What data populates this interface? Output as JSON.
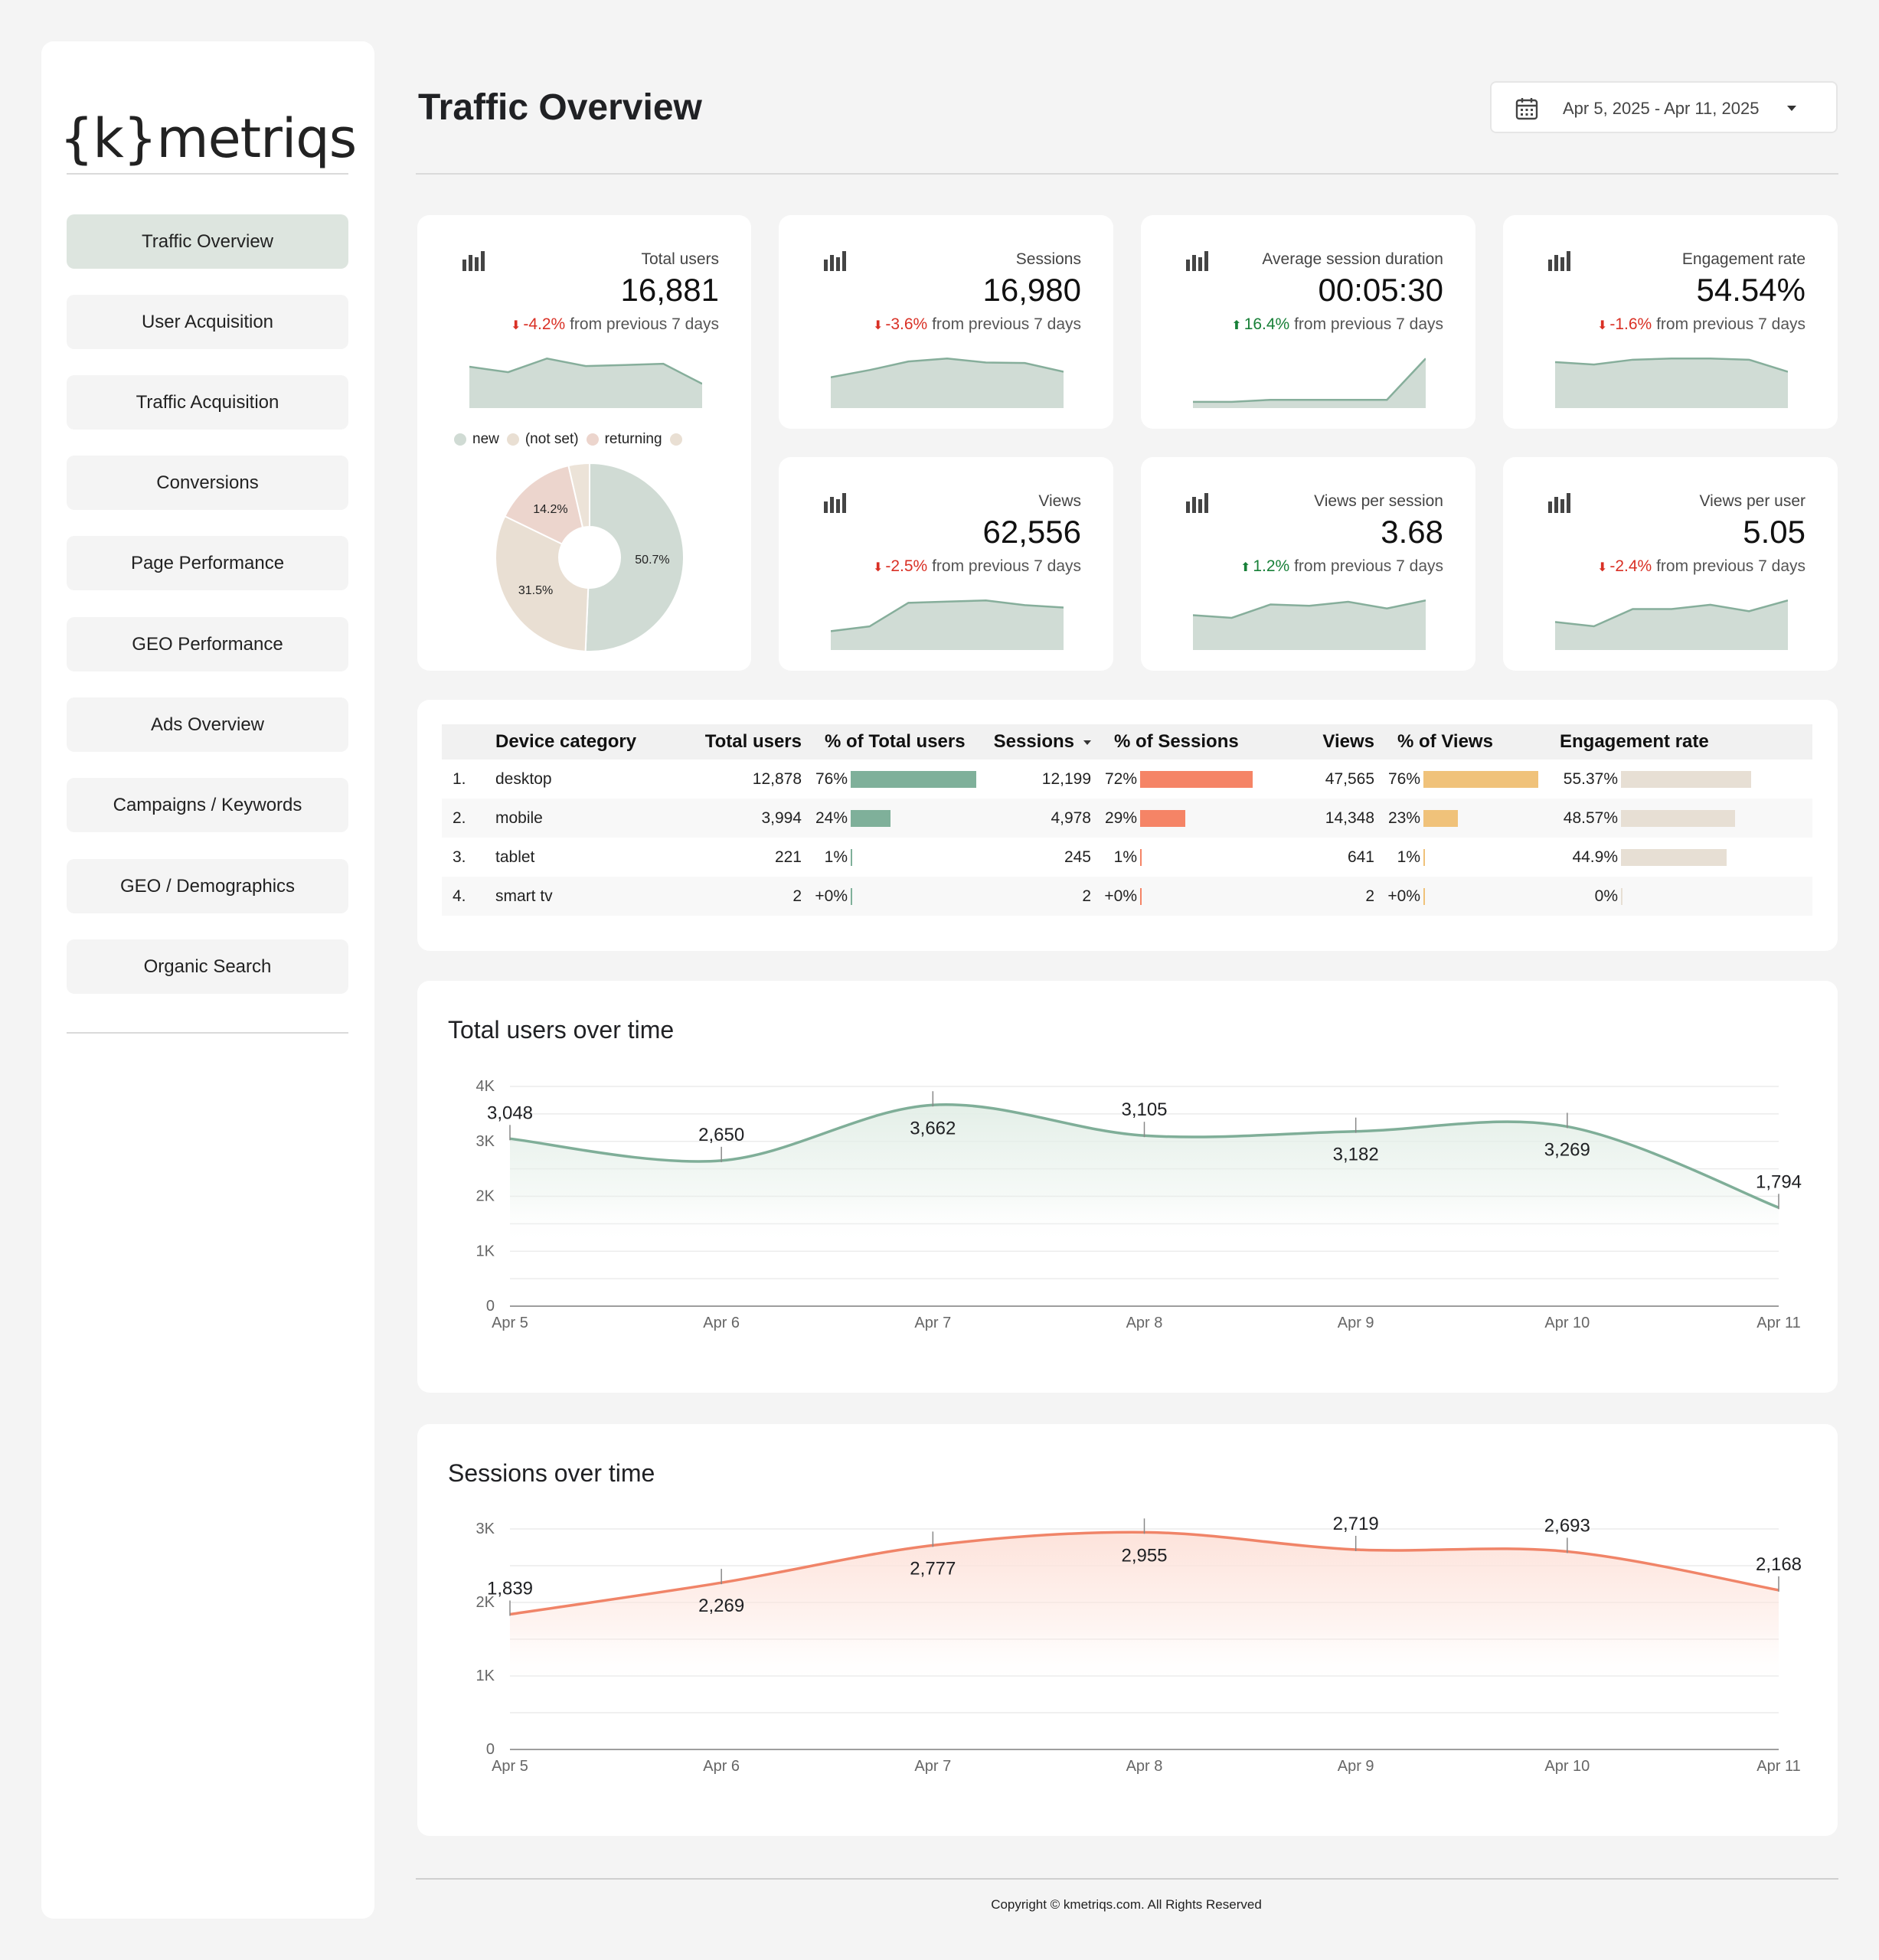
{
  "brand": {
    "logo_text": "{k}metriqs"
  },
  "sidebar": {
    "items": [
      {
        "label": "Traffic Overview",
        "active": true
      },
      {
        "label": "User Acquisition"
      },
      {
        "label": "Traffic Acquisition"
      },
      {
        "label": "Conversions"
      },
      {
        "label": "Page Performance"
      },
      {
        "label": "GEO Performance"
      },
      {
        "label": "Ads Overview"
      },
      {
        "label": "Campaigns / Keywords"
      },
      {
        "label": "GEO / Demographics"
      },
      {
        "label": "Organic Search"
      }
    ]
  },
  "header": {
    "title": "Traffic Overview",
    "date_range": "Apr 5, 2025 - Apr 11, 2025",
    "calendar_icon": "calendar-icon"
  },
  "kpis": [
    {
      "label": "Total users",
      "value": "16,881",
      "delta": "-4.2%",
      "direction": "down",
      "suffix": "from previous 7 days",
      "spark": [
        3.05,
        2.65,
        3.66,
        3.1,
        3.18,
        3.27,
        1.79
      ]
    },
    {
      "label": "Sessions",
      "value": "16,980",
      "delta": "-3.6%",
      "direction": "down",
      "suffix": "from previous 7 days",
      "spark": [
        1.84,
        2.27,
        2.78,
        2.96,
        2.72,
        2.69,
        2.17
      ]
    },
    {
      "label": "Average session duration",
      "value": "00:05:30",
      "delta": "16.4%",
      "direction": "up",
      "suffix": "from previous 7 days",
      "spark": [
        0.3,
        0.3,
        0.4,
        0.4,
        0.4,
        0.4,
        2.4
      ]
    },
    {
      "label": "Engagement rate",
      "value": "54.54%",
      "delta": "-1.6%",
      "direction": "down",
      "suffix": "from previous 7 days",
      "spark": [
        1.9,
        1.8,
        2.0,
        2.05,
        2.05,
        2.0,
        1.5
      ]
    },
    {
      "label": "Views",
      "value": "62,556",
      "delta": "-2.5%",
      "direction": "down",
      "suffix": "from previous 7 days",
      "spark": [
        0.8,
        1.0,
        2.0,
        2.05,
        2.1,
        1.9,
        1.8
      ]
    },
    {
      "label": "Views per session",
      "value": "3.68",
      "delta": "1.2%",
      "direction": "up",
      "suffix": "from previous 7 days",
      "spark": [
        2.6,
        2.4,
        3.4,
        3.3,
        3.6,
        3.1,
        3.7
      ]
    },
    {
      "label": "Views per user",
      "value": "5.05",
      "delta": "-2.4%",
      "direction": "down",
      "suffix": "from previous 7 days",
      "spark": [
        1.3,
        1.1,
        1.9,
        1.9,
        2.1,
        1.8,
        2.3
      ]
    }
  ],
  "user_type_pie": {
    "legend": [
      {
        "label": "new",
        "color": "#d0dbd4"
      },
      {
        "label": "(not set)",
        "color": "#e9dfd3"
      },
      {
        "label": "returning",
        "color": "#ecd5cd"
      },
      {
        "label": "",
        "color": "#e9dfd3"
      }
    ],
    "slices": [
      {
        "label": "new",
        "value": 50.7,
        "text": "50.7%",
        "color": "#d0dbd4"
      },
      {
        "label": "(not set)",
        "value": 31.5,
        "text": "31.5%",
        "color": "#e9dfd3"
      },
      {
        "label": "returning",
        "value": 14.2,
        "text": "14.2%",
        "color": "#ecd5cd"
      },
      {
        "label": "",
        "value": 3.6,
        "text": "",
        "color": "#ece3d8"
      }
    ]
  },
  "device_table": {
    "columns": [
      "",
      "Device category",
      "Total users",
      "% of Total users",
      "Sessions",
      "% of Sessions",
      "Views",
      "% of Views",
      "Engagement rate"
    ],
    "rows": [
      {
        "idx": "1.",
        "device": "desktop",
        "users": "12,878",
        "users_pct": "76%",
        "users_frac": 0.76,
        "sessions": "12,199",
        "sessions_pct": "72%",
        "sessions_frac": 0.72,
        "views": "47,565",
        "views_pct": "76%",
        "views_frac": 0.76,
        "eng": "55.37%",
        "eng_frac": 0.5537
      },
      {
        "idx": "2.",
        "device": "mobile",
        "users": "3,994",
        "users_pct": "24%",
        "users_frac": 0.24,
        "sessions": "4,978",
        "sessions_pct": "29%",
        "sessions_frac": 0.29,
        "views": "14,348",
        "views_pct": "23%",
        "views_frac": 0.23,
        "eng": "48.57%",
        "eng_frac": 0.4857
      },
      {
        "idx": "3.",
        "device": "tablet",
        "users": "221",
        "users_pct": "1%",
        "users_frac": 0.01,
        "sessions": "245",
        "sessions_pct": "1%",
        "sessions_frac": 0.01,
        "views": "641",
        "views_pct": "1%",
        "views_frac": 0.01,
        "eng": "44.9%",
        "eng_frac": 0.449
      },
      {
        "idx": "4.",
        "device": "smart tv",
        "users": "2",
        "users_pct": "+0%",
        "users_frac": 0.0,
        "sessions": "2",
        "sessions_pct": "+0%",
        "sessions_frac": 0.0,
        "views": "2",
        "views_pct": "+0%",
        "views_frac": 0.0,
        "eng": "0%",
        "eng_frac": 0.0
      }
    ],
    "colors": {
      "users": "#7fb09a",
      "sessions": "#f58466",
      "views": "#f0c27a",
      "eng": "#e7dfd4"
    }
  },
  "chart_data": [
    {
      "type": "area",
      "title": "Total users over time",
      "x": [
        "Apr 5",
        "Apr 6",
        "Apr 7",
        "Apr 8",
        "Apr 9",
        "Apr 10",
        "Apr 11"
      ],
      "series": [
        {
          "values": [
            3048,
            2650,
            3662,
            3105,
            3182,
            3269,
            1794
          ],
          "labels": [
            "3,048",
            "2,650",
            "3,662",
            "3,105",
            "3,182",
            "3,269",
            "1,794"
          ]
        }
      ],
      "yticks": [
        "0",
        "1K",
        "2K",
        "3K",
        "4K"
      ],
      "ylim": [
        0,
        4000
      ],
      "color": "#7fae98",
      "fill": "#e4efe8"
    },
    {
      "type": "area",
      "title": "Sessions over time",
      "x": [
        "Apr 5",
        "Apr 6",
        "Apr 7",
        "Apr 8",
        "Apr 9",
        "Apr 10",
        "Apr 11"
      ],
      "series": [
        {
          "values": [
            1839,
            2269,
            2777,
            2955,
            2719,
            2693,
            2168
          ],
          "labels": [
            "1,839",
            "2,269",
            "2,777",
            "2,955",
            "2,719",
            "2,693",
            "2,168"
          ]
        }
      ],
      "yticks": [
        "0",
        "1K",
        "2K",
        "3K"
      ],
      "ylim": [
        0,
        3000
      ],
      "color": "#f08468",
      "fill": "#fde3db"
    }
  ],
  "footer": {
    "copyright": "Copyright © kmetriqs.com. All Rights Reserved"
  }
}
